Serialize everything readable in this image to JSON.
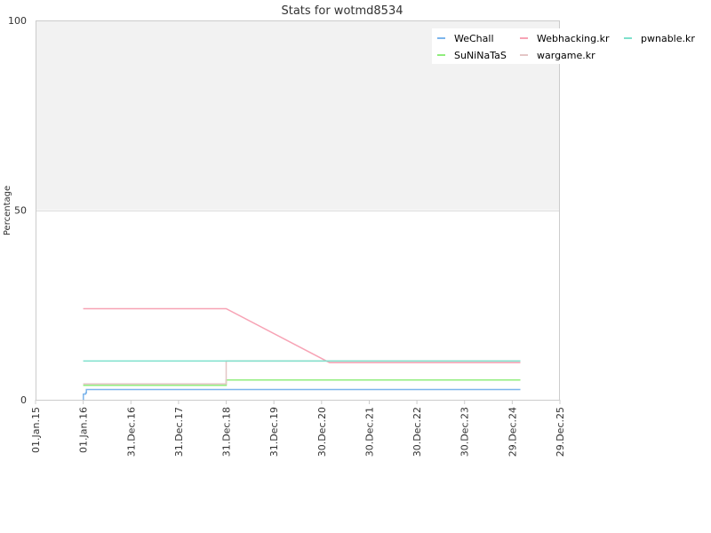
{
  "chart_data": {
    "type": "line",
    "title": "Stats for wotmd8534",
    "xlabel": "",
    "ylabel": "Percentage",
    "ylim": [
      0,
      100
    ],
    "xlim": [
      "2015-01-01",
      "2025-12-29"
    ],
    "y_ticks": [
      "0",
      "50",
      "100"
    ],
    "x_ticks": [
      "01.Jan.15",
      "01.Jan.16",
      "31.Dec.16",
      "31.Dec.17",
      "31.Dec.18",
      "31.Dec.19",
      "30.Dec.20",
      "30.Dec.21",
      "30.Dec.22",
      "30.Dec.23",
      "29.Dec.24",
      "29.Dec.25"
    ],
    "x_tick_dates": [
      "2015-01-01",
      "2016-01-01",
      "2016-12-31",
      "2017-12-31",
      "2018-12-31",
      "2019-12-31",
      "2020-12-30",
      "2021-12-30",
      "2022-12-30",
      "2023-12-30",
      "2024-12-29",
      "2025-12-29"
    ],
    "upper_band": {
      "from": 50,
      "to": 100,
      "color": "#f2f2f2"
    },
    "grid": true,
    "legend_position": "top-right",
    "series": [
      {
        "name": "WeChall",
        "color": "#7cb5ec",
        "step": true,
        "points": [
          [
            "2016-01-01",
            0
          ],
          [
            "2016-01-02",
            1.5
          ],
          [
            "2016-01-20",
            1.8
          ],
          [
            "2016-01-25",
            2.7
          ],
          [
            "2025-03-01",
            2.7
          ]
        ]
      },
      {
        "name": "SuNiNaTaS",
        "color": "#90ed7d",
        "step": true,
        "points": [
          [
            "2016-01-01",
            3.8
          ],
          [
            "2018-12-31",
            5.2
          ],
          [
            "2025-03-01",
            5.2
          ]
        ]
      },
      {
        "name": "Webhacking.kr",
        "color": "#f7a3b5",
        "step": false,
        "points": [
          [
            "2016-01-01",
            24
          ],
          [
            "2018-12-31",
            24
          ],
          [
            "2021-03-01",
            9.8
          ],
          [
            "2025-03-01",
            9.8
          ]
        ]
      },
      {
        "name": "wargame.kr",
        "color": "#e4c6c6",
        "step": true,
        "points": [
          [
            "2016-01-01",
            4.2
          ],
          [
            "2018-12-31",
            10.2
          ],
          [
            "2025-03-01",
            10.2
          ]
        ]
      },
      {
        "name": "pwnable.kr",
        "color": "#7ee0cc",
        "step": false,
        "points": [
          [
            "2016-01-01",
            10.2
          ],
          [
            "2025-03-01",
            10.2
          ]
        ]
      }
    ]
  }
}
